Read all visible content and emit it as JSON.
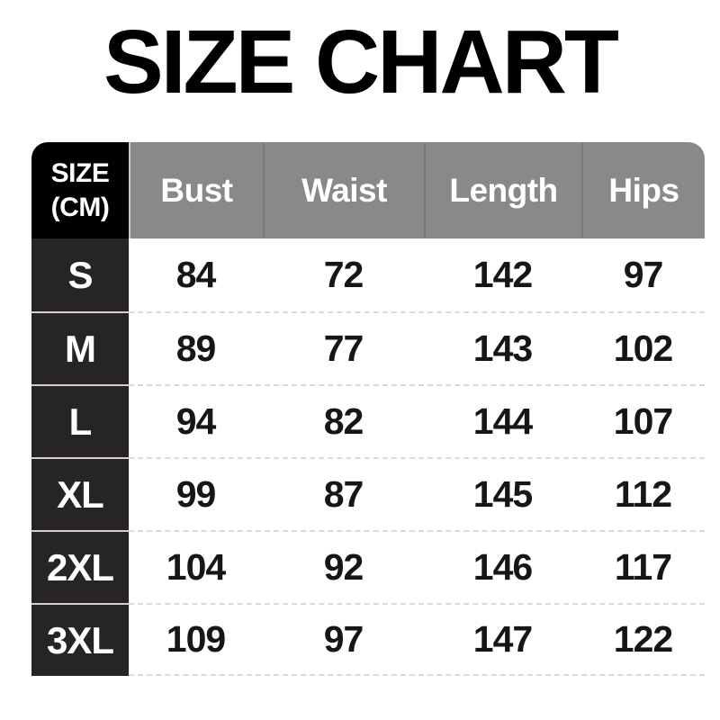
{
  "title": "SIZE CHART",
  "header": {
    "size_line1": "SIZE",
    "size_line2": "(CM)",
    "columns": [
      "Bust",
      "Waist",
      "Length",
      "Hips"
    ]
  },
  "chart_data": {
    "type": "table",
    "title": "SIZE CHART",
    "columns": [
      "SIZE (CM)",
      "Bust",
      "Waist",
      "Length",
      "Hips"
    ],
    "rows": [
      [
        "S",
        84,
        72,
        142,
        97
      ],
      [
        "M",
        89,
        77,
        143,
        102
      ],
      [
        "L",
        94,
        82,
        144,
        107
      ],
      [
        "XL",
        99,
        87,
        145,
        112
      ],
      [
        "2XL",
        104,
        92,
        146,
        117
      ],
      [
        "3XL",
        109,
        97,
        147,
        122
      ]
    ]
  },
  "colors": {
    "page_bg": "#ffffff",
    "title_text": "#000000",
    "header_bg": "#8a8888",
    "header_text": "#ffffff",
    "size_header_bg": "#000000",
    "label_cell_bg": "#262425",
    "label_cell_text": "#ffffff",
    "label_separator": "#d5cfc5",
    "row_divider_dashed": "#d9d9d9",
    "value_text": "#161616"
  }
}
